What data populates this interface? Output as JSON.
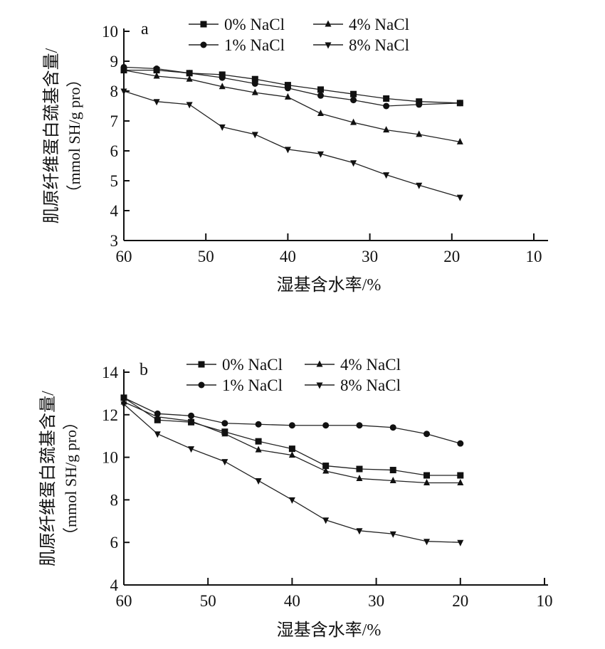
{
  "chart_data": [
    {
      "type": "line",
      "panel_label": "a",
      "xlabel": "湿基含水率/%",
      "ylabel": [
        "肌原纤维蛋白巯基含量/",
        "（mmol SH/g pro）"
      ],
      "xlim": [
        60,
        10
      ],
      "ylim": [
        3,
        10
      ],
      "xticks": [
        "60",
        "50",
        "40",
        "30",
        "20",
        "10"
      ],
      "yticks": [
        "3",
        "4",
        "5",
        "6",
        "7",
        "8",
        "9",
        "10"
      ],
      "legend": "top",
      "x": [
        60,
        56,
        52,
        48,
        44,
        40,
        36,
        32,
        28,
        24,
        19
      ],
      "series": [
        {
          "name": "0% NaCl",
          "marker": "square",
          "values": [
            8.7,
            8.7,
            8.6,
            8.55,
            8.4,
            8.2,
            8.05,
            7.9,
            7.75,
            7.65,
            7.6
          ]
        },
        {
          "name": "1% NaCl",
          "marker": "circle",
          "values": [
            8.8,
            8.75,
            8.6,
            8.45,
            8.25,
            8.1,
            7.85,
            7.7,
            7.5,
            7.55,
            7.6
          ]
        },
        {
          "name": "4% NaCl",
          "marker": "triangle-up",
          "values": [
            8.7,
            8.5,
            8.4,
            8.15,
            7.95,
            7.8,
            7.25,
            6.95,
            6.7,
            6.55,
            6.3
          ]
        },
        {
          "name": "8% NaCl",
          "marker": "triangle-down",
          "values": [
            8.0,
            7.65,
            7.55,
            6.8,
            6.55,
            6.05,
            5.9,
            5.6,
            5.2,
            4.85,
            4.45
          ]
        }
      ]
    },
    {
      "type": "line",
      "panel_label": "b",
      "xlabel": "湿基含水率/%",
      "ylabel": [
        "肌原纤维蛋白巯基含量/",
        "（mmol SH/g pro）"
      ],
      "xlim": [
        60,
        10
      ],
      "ylim": [
        4,
        14
      ],
      "xticks": [
        "60",
        "50",
        "40",
        "30",
        "20",
        "10"
      ],
      "yticks": [
        "4",
        "6",
        "8",
        "10",
        "12",
        "14"
      ],
      "legend": "top",
      "x": [
        60,
        56,
        52,
        48,
        44,
        40,
        36,
        32,
        28,
        24,
        20
      ],
      "series": [
        {
          "name": "0% NaCl",
          "marker": "square",
          "values": [
            12.8,
            11.75,
            11.65,
            11.2,
            10.75,
            10.4,
            9.6,
            9.45,
            9.4,
            9.15,
            9.15
          ]
        },
        {
          "name": "1% NaCl",
          "marker": "circle",
          "values": [
            12.8,
            12.05,
            11.95,
            11.6,
            11.55,
            11.5,
            11.5,
            11.5,
            11.4,
            11.1,
            10.65
          ]
        },
        {
          "name": "4% NaCl",
          "marker": "triangle-up",
          "values": [
            12.6,
            11.9,
            11.7,
            11.1,
            10.35,
            10.1,
            9.35,
            9.0,
            8.9,
            8.8,
            8.8
          ]
        },
        {
          "name": "8% NaCl",
          "marker": "triangle-down",
          "values": [
            12.5,
            11.1,
            10.4,
            9.8,
            8.9,
            8.0,
            7.05,
            6.55,
            6.4,
            6.05,
            6.0
          ]
        }
      ]
    }
  ]
}
